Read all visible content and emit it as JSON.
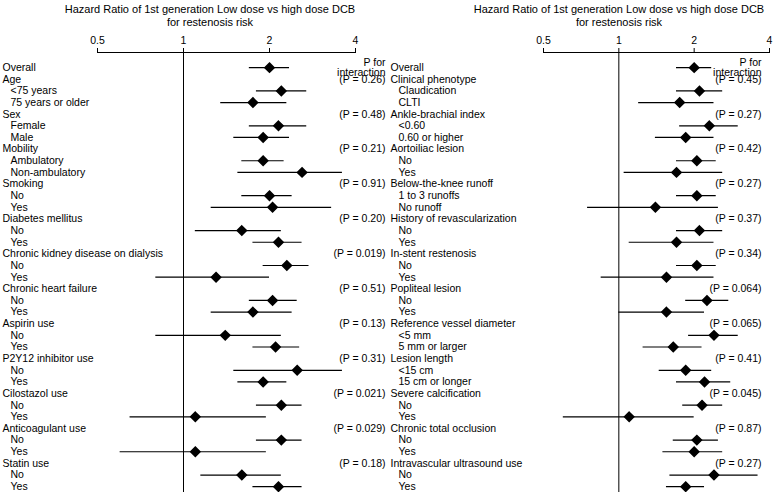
{
  "chart_data": [
    {
      "type": "forest",
      "title": [
        "Hazard Ratio of 1st generation Low dose vs high dose DCB",
        "for restenosis risk"
      ],
      "log": "x",
      "xlim": [
        0.5,
        4
      ],
      "xticks": [
        0.5,
        1,
        2,
        4
      ],
      "reference_value": 1,
      "marker": "diamond",
      "color": "#000000",
      "p_column_title": [
        "P for",
        "interaction"
      ],
      "overall": {
        "label": "Overall",
        "hr": 2.0,
        "lower": 1.7,
        "upper": 2.35
      },
      "groups": [
        {
          "name": "Age",
          "p": "(P = 0.26)",
          "subgroups": [
            {
              "label": "<75 years",
              "hr": 2.2,
              "lower": 1.8,
              "upper": 2.7
            },
            {
              "label": "75 years or older",
              "hr": 1.75,
              "lower": 1.35,
              "upper": 2.3
            }
          ]
        },
        {
          "name": "Sex",
          "p": "(P = 0.48)",
          "subgroups": [
            {
              "label": "Female",
              "hr": 2.15,
              "lower": 1.7,
              "upper": 2.7
            },
            {
              "label": "Male",
              "hr": 1.9,
              "lower": 1.5,
              "upper": 2.35
            }
          ]
        },
        {
          "name": "Mobility",
          "p": "(P = 0.21)",
          "subgroups": [
            {
              "label": "Ambulatory",
              "hr": 1.9,
              "lower": 1.6,
              "upper": 2.25
            },
            {
              "label": "Non-ambulatory",
              "hr": 2.6,
              "lower": 1.55,
              "upper": 3.6
            }
          ]
        },
        {
          "name": "Smoking",
          "p": "(P = 0.91)",
          "subgroups": [
            {
              "label": "No",
              "hr": 2.0,
              "lower": 1.6,
              "upper": 2.4
            },
            {
              "label": "Yes",
              "hr": 2.05,
              "lower": 1.25,
              "upper": 3.3
            }
          ]
        },
        {
          "name": "Diabetes mellitus",
          "p": "(P = 0.20)",
          "subgroups": [
            {
              "label": "No",
              "hr": 1.6,
              "lower": 1.1,
              "upper": 2.2
            },
            {
              "label": "Yes",
              "hr": 2.15,
              "lower": 1.75,
              "upper": 2.6
            }
          ]
        },
        {
          "name": "Chronic kidney disease on dialysis",
          "p": "(P = 0.019)",
          "subgroups": [
            {
              "label": "No",
              "hr": 2.3,
              "lower": 1.9,
              "upper": 2.75
            },
            {
              "label": "Yes",
              "hr": 1.3,
              "lower": 0.8,
              "upper": 2.0
            }
          ]
        },
        {
          "name": "Chronic heart failure",
          "p": "(P = 0.51)",
          "subgroups": [
            {
              "label": "No",
              "hr": 2.05,
              "lower": 1.7,
              "upper": 2.5
            },
            {
              "label": "Yes",
              "hr": 1.75,
              "lower": 1.25,
              "upper": 2.4
            }
          ]
        },
        {
          "name": "Aspirin use",
          "p": "(P = 0.13)",
          "subgroups": [
            {
              "label": "No",
              "hr": 1.4,
              "lower": 0.8,
              "upper": 2.2
            },
            {
              "label": "Yes",
              "hr": 2.1,
              "lower": 1.75,
              "upper": 2.55
            }
          ]
        },
        {
          "name": "P2Y12 inhibitor use",
          "p": "(P = 0.31)",
          "subgroups": [
            {
              "label": "No",
              "hr": 2.5,
              "lower": 1.5,
              "upper": 3.6
            },
            {
              "label": "Yes",
              "hr": 1.9,
              "lower": 1.55,
              "upper": 2.3
            }
          ]
        },
        {
          "name": "Cilostazol use",
          "p": "(P = 0.021)",
          "subgroups": [
            {
              "label": "No",
              "hr": 2.2,
              "lower": 1.8,
              "upper": 2.6
            },
            {
              "label": "Yes",
              "hr": 1.1,
              "lower": 0.65,
              "upper": 1.95
            }
          ]
        },
        {
          "name": "Anticoagulant use",
          "p": "(P = 0.029)",
          "subgroups": [
            {
              "label": "No",
              "hr": 2.2,
              "lower": 1.8,
              "upper": 2.6
            },
            {
              "label": "Yes",
              "hr": 1.1,
              "lower": 0.6,
              "upper": 1.95
            }
          ]
        },
        {
          "name": "Statin use",
          "p": "(P = 0.18)",
          "subgroups": [
            {
              "label": "No",
              "hr": 1.6,
              "lower": 1.15,
              "upper": 2.2
            },
            {
              "label": "Yes",
              "hr": 2.15,
              "lower": 1.75,
              "upper": 2.6
            }
          ]
        }
      ]
    },
    {
      "type": "forest",
      "title": [
        "Hazard Ratio of 1st generation Low dose vs high dose DCB",
        "for restenosis risk"
      ],
      "log": "x",
      "xlim": [
        0.5,
        4
      ],
      "xticks": [
        0.5,
        1,
        2,
        4
      ],
      "reference_value": 1,
      "marker": "diamond",
      "color": "#000000",
      "p_column_title": [
        "P for",
        "interaction"
      ],
      "overall": {
        "label": "Overall",
        "hr": 2.0,
        "lower": 1.7,
        "upper": 2.35
      },
      "groups": [
        {
          "name": "Clinical phenotype",
          "p": "(P = 0.45)",
          "subgroups": [
            {
              "label": "Claudication",
              "hr": 2.1,
              "lower": 1.7,
              "upper": 2.6
            },
            {
              "label": "CLTI",
              "hr": 1.75,
              "lower": 1.2,
              "upper": 2.4
            }
          ]
        },
        {
          "name": "Ankle-brachial index",
          "p": "(P = 0.27)",
          "subgroups": [
            {
              "label": "<0.60",
              "hr": 2.3,
              "lower": 1.75,
              "upper": 3.0
            },
            {
              "label": "0.60 or higher",
              "hr": 1.85,
              "lower": 1.4,
              "upper": 2.4
            }
          ]
        },
        {
          "name": "Aortoiliac lesion",
          "p": "(P = 0.42)",
          "subgroups": [
            {
              "label": "No",
              "hr": 2.05,
              "lower": 1.7,
              "upper": 2.45
            },
            {
              "label": "Yes",
              "hr": 1.7,
              "lower": 1.05,
              "upper": 2.6
            }
          ]
        },
        {
          "name": "Below-the-knee runoff",
          "p": "(P = 0.27)",
          "subgroups": [
            {
              "label": "1 to 3 runoffs",
              "hr": 2.05,
              "lower": 1.7,
              "upper": 2.45
            },
            {
              "label": "No runoff",
              "hr": 1.4,
              "lower": 0.75,
              "upper": 2.5
            }
          ]
        },
        {
          "name": "History of revascularization",
          "p": "(P = 0.37)",
          "subgroups": [
            {
              "label": "No",
              "hr": 2.1,
              "lower": 1.7,
              "upper": 2.6
            },
            {
              "label": "Yes",
              "hr": 1.7,
              "lower": 1.1,
              "upper": 2.4
            }
          ]
        },
        {
          "name": "In-stent restenosis",
          "p": "(P = 0.34)",
          "subgroups": [
            {
              "label": "No",
              "hr": 2.05,
              "lower": 1.7,
              "upper": 2.45
            },
            {
              "label": "Yes",
              "hr": 1.55,
              "lower": 0.85,
              "upper": 2.4
            }
          ]
        },
        {
          "name": "Popliteal lesion",
          "p": "(P = 0.064)",
          "subgroups": [
            {
              "label": "No",
              "hr": 2.25,
              "lower": 1.85,
              "upper": 2.75
            },
            {
              "label": "Yes",
              "hr": 1.55,
              "lower": 1.0,
              "upper": 2.2
            }
          ]
        },
        {
          "name": "Reference vessel diameter",
          "p": "(P = 0.065)",
          "subgroups": [
            {
              "label": "<5 mm",
              "hr": 2.4,
              "lower": 1.9,
              "upper": 3.0
            },
            {
              "label": "5 mm or larger",
              "hr": 1.65,
              "lower": 1.25,
              "upper": 2.15
            }
          ]
        },
        {
          "name": "Lesion length",
          "p": "(P = 0.41)",
          "subgroups": [
            {
              "label": "<15 cm",
              "hr": 1.85,
              "lower": 1.45,
              "upper": 2.35
            },
            {
              "label": "15 cm or longer",
              "hr": 2.2,
              "lower": 1.7,
              "upper": 2.8
            }
          ]
        },
        {
          "name": "Severe calcification",
          "p": "(P = 0.045)",
          "subgroups": [
            {
              "label": "No",
              "hr": 2.15,
              "lower": 1.8,
              "upper": 2.6
            },
            {
              "label": "Yes",
              "hr": 1.1,
              "lower": 0.6,
              "upper": 2.0
            }
          ]
        },
        {
          "name": "Chronic total occlusion",
          "p": "(P = 0.87)",
          "subgroups": [
            {
              "label": "No",
              "hr": 2.05,
              "lower": 1.65,
              "upper": 2.5
            },
            {
              "label": "Yes",
              "hr": 2.0,
              "lower": 1.5,
              "upper": 2.6
            }
          ]
        },
        {
          "name": "Intravascular ultrasound use",
          "p": "(P = 0.27)",
          "subgroups": [
            {
              "label": "No",
              "hr": 2.4,
              "lower": 1.6,
              "upper": 3.6
            },
            {
              "label": "Yes",
              "hr": 1.85,
              "lower": 1.55,
              "upper": 2.2
            }
          ]
        }
      ]
    }
  ]
}
